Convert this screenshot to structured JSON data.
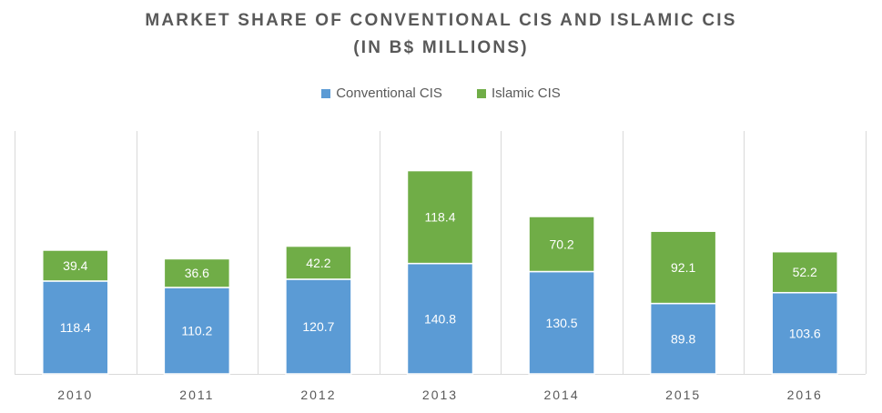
{
  "chart_data": {
    "type": "bar",
    "stacked": true,
    "title": "MARKET SHARE OF CONVENTIONAL CIS AND ISLAMIC CIS",
    "subtitle": "(IN B$ MILLIONS)",
    "categories": [
      "2010",
      "2011",
      "2012",
      "2013",
      "2014",
      "2015",
      "2016"
    ],
    "series": [
      {
        "name": "Conventional CIS",
        "color": "#5b9bd5",
        "values": [
          118.4,
          110.2,
          120.7,
          140.8,
          130.5,
          89.8,
          103.6
        ]
      },
      {
        "name": "Islamic CIS",
        "color": "#70ad47",
        "values": [
          39.4,
          36.6,
          42.2,
          118.4,
          70.2,
          92.1,
          52.2
        ]
      }
    ],
    "legend_position": "top-center",
    "ylim": [
      0,
      300
    ],
    "grid": "vertical category separators"
  }
}
